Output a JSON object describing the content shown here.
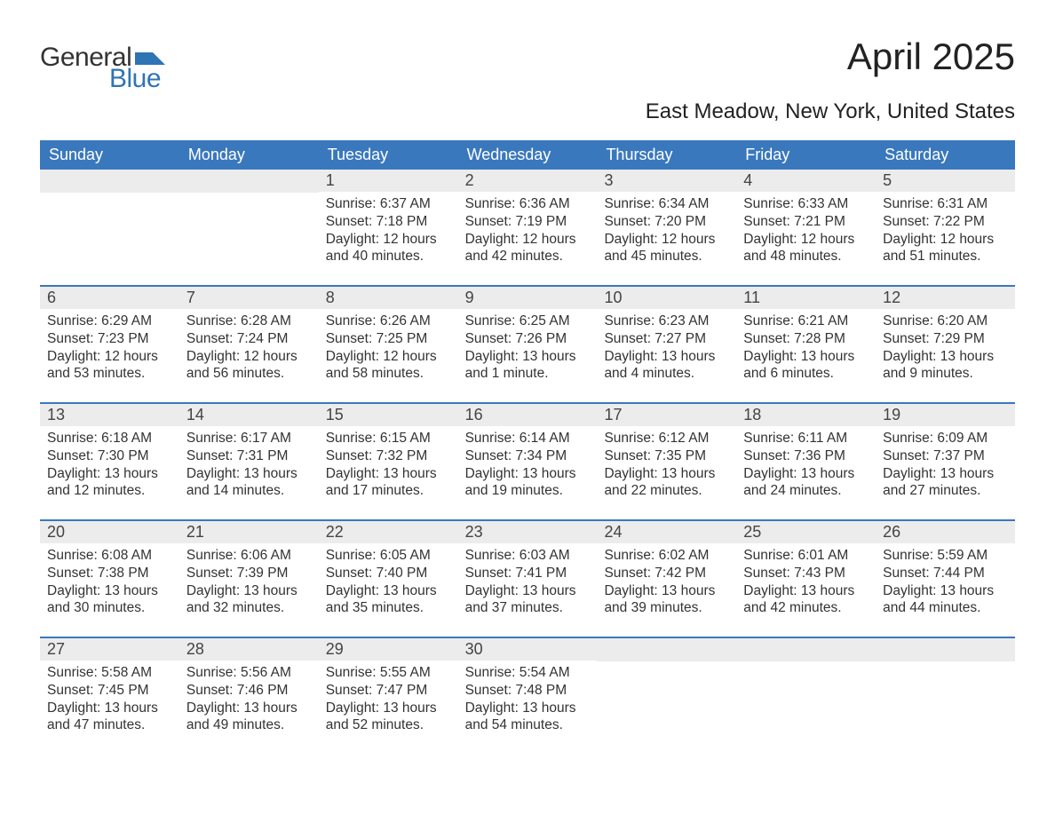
{
  "logo": {
    "text1": "General",
    "text2": "Blue"
  },
  "title": "April 2025",
  "subtitle": "East Meadow, New York, United States",
  "colors": {
    "header_bg": "#3a78bd",
    "header_text": "#ffffff",
    "daynum_bg": "#ececec",
    "border": "#3a78bd",
    "body_text": "#333333",
    "logo_blue": "#2f74b5"
  },
  "day_names": [
    "Sunday",
    "Monday",
    "Tuesday",
    "Wednesday",
    "Thursday",
    "Friday",
    "Saturday"
  ],
  "weeks": [
    [
      {
        "empty": true
      },
      {
        "empty": true
      },
      {
        "num": "1",
        "sunrise": "6:37 AM",
        "sunset": "7:18 PM",
        "daylight": "12 hours and 40 minutes."
      },
      {
        "num": "2",
        "sunrise": "6:36 AM",
        "sunset": "7:19 PM",
        "daylight": "12 hours and 42 minutes."
      },
      {
        "num": "3",
        "sunrise": "6:34 AM",
        "sunset": "7:20 PM",
        "daylight": "12 hours and 45 minutes."
      },
      {
        "num": "4",
        "sunrise": "6:33 AM",
        "sunset": "7:21 PM",
        "daylight": "12 hours and 48 minutes."
      },
      {
        "num": "5",
        "sunrise": "6:31 AM",
        "sunset": "7:22 PM",
        "daylight": "12 hours and 51 minutes."
      }
    ],
    [
      {
        "num": "6",
        "sunrise": "6:29 AM",
        "sunset": "7:23 PM",
        "daylight": "12 hours and 53 minutes."
      },
      {
        "num": "7",
        "sunrise": "6:28 AM",
        "sunset": "7:24 PM",
        "daylight": "12 hours and 56 minutes."
      },
      {
        "num": "8",
        "sunrise": "6:26 AM",
        "sunset": "7:25 PM",
        "daylight": "12 hours and 58 minutes."
      },
      {
        "num": "9",
        "sunrise": "6:25 AM",
        "sunset": "7:26 PM",
        "daylight": "13 hours and 1 minute."
      },
      {
        "num": "10",
        "sunrise": "6:23 AM",
        "sunset": "7:27 PM",
        "daylight": "13 hours and 4 minutes."
      },
      {
        "num": "11",
        "sunrise": "6:21 AM",
        "sunset": "7:28 PM",
        "daylight": "13 hours and 6 minutes."
      },
      {
        "num": "12",
        "sunrise": "6:20 AM",
        "sunset": "7:29 PM",
        "daylight": "13 hours and 9 minutes."
      }
    ],
    [
      {
        "num": "13",
        "sunrise": "6:18 AM",
        "sunset": "7:30 PM",
        "daylight": "13 hours and 12 minutes."
      },
      {
        "num": "14",
        "sunrise": "6:17 AM",
        "sunset": "7:31 PM",
        "daylight": "13 hours and 14 minutes."
      },
      {
        "num": "15",
        "sunrise": "6:15 AM",
        "sunset": "7:32 PM",
        "daylight": "13 hours and 17 minutes."
      },
      {
        "num": "16",
        "sunrise": "6:14 AM",
        "sunset": "7:34 PM",
        "daylight": "13 hours and 19 minutes."
      },
      {
        "num": "17",
        "sunrise": "6:12 AM",
        "sunset": "7:35 PM",
        "daylight": "13 hours and 22 minutes."
      },
      {
        "num": "18",
        "sunrise": "6:11 AM",
        "sunset": "7:36 PM",
        "daylight": "13 hours and 24 minutes."
      },
      {
        "num": "19",
        "sunrise": "6:09 AM",
        "sunset": "7:37 PM",
        "daylight": "13 hours and 27 minutes."
      }
    ],
    [
      {
        "num": "20",
        "sunrise": "6:08 AM",
        "sunset": "7:38 PM",
        "daylight": "13 hours and 30 minutes."
      },
      {
        "num": "21",
        "sunrise": "6:06 AM",
        "sunset": "7:39 PM",
        "daylight": "13 hours and 32 minutes."
      },
      {
        "num": "22",
        "sunrise": "6:05 AM",
        "sunset": "7:40 PM",
        "daylight": "13 hours and 35 minutes."
      },
      {
        "num": "23",
        "sunrise": "6:03 AM",
        "sunset": "7:41 PM",
        "daylight": "13 hours and 37 minutes."
      },
      {
        "num": "24",
        "sunrise": "6:02 AM",
        "sunset": "7:42 PM",
        "daylight": "13 hours and 39 minutes."
      },
      {
        "num": "25",
        "sunrise": "6:01 AM",
        "sunset": "7:43 PM",
        "daylight": "13 hours and 42 minutes."
      },
      {
        "num": "26",
        "sunrise": "5:59 AM",
        "sunset": "7:44 PM",
        "daylight": "13 hours and 44 minutes."
      }
    ],
    [
      {
        "num": "27",
        "sunrise": "5:58 AM",
        "sunset": "7:45 PM",
        "daylight": "13 hours and 47 minutes."
      },
      {
        "num": "28",
        "sunrise": "5:56 AM",
        "sunset": "7:46 PM",
        "daylight": "13 hours and 49 minutes."
      },
      {
        "num": "29",
        "sunrise": "5:55 AM",
        "sunset": "7:47 PM",
        "daylight": "13 hours and 52 minutes."
      },
      {
        "num": "30",
        "sunrise": "5:54 AM",
        "sunset": "7:48 PM",
        "daylight": "13 hours and 54 minutes."
      },
      {
        "empty": true
      },
      {
        "empty": true
      },
      {
        "empty": true
      }
    ]
  ],
  "labels": {
    "sunrise": "Sunrise: ",
    "sunset": "Sunset: ",
    "daylight": "Daylight: "
  }
}
